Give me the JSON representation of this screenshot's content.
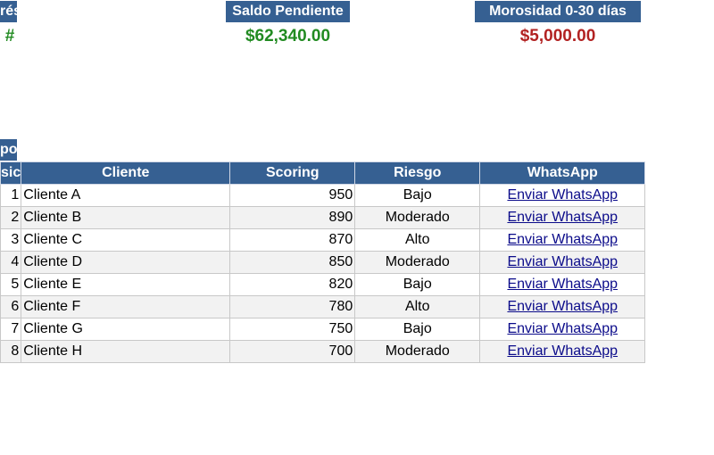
{
  "summary": [
    {
      "label": "rés",
      "value": "#",
      "color": "#228b22"
    },
    {
      "label": "Saldo Pendiente",
      "value": "$62,340.00",
      "color": "#228b22"
    },
    {
      "label": "Morosidad 0-30 días",
      "value": "$5,000.00",
      "color": "#b22222"
    }
  ],
  "table": {
    "group_label": "po",
    "headers": [
      "sic",
      "Cliente",
      "Scoring",
      "Riesgo",
      "WhatsApp"
    ],
    "rows": [
      {
        "pos": "1",
        "cliente": "Cliente A",
        "scoring": "950",
        "riesgo": "Bajo",
        "whatsapp": "Enviar WhatsApp"
      },
      {
        "pos": "2",
        "cliente": "Cliente B",
        "scoring": "890",
        "riesgo": "Moderado",
        "whatsapp": "Enviar WhatsApp"
      },
      {
        "pos": "3",
        "cliente": "Cliente C",
        "scoring": "870",
        "riesgo": "Alto",
        "whatsapp": "Enviar WhatsApp"
      },
      {
        "pos": "4",
        "cliente": "Cliente D",
        "scoring": "850",
        "riesgo": "Moderado",
        "whatsapp": "Enviar WhatsApp"
      },
      {
        "pos": "5",
        "cliente": "Cliente E",
        "scoring": "820",
        "riesgo": "Bajo",
        "whatsapp": "Enviar WhatsApp"
      },
      {
        "pos": "6",
        "cliente": "Cliente F",
        "scoring": "780",
        "riesgo": "Alto",
        "whatsapp": "Enviar WhatsApp"
      },
      {
        "pos": "7",
        "cliente": "Cliente G",
        "scoring": "750",
        "riesgo": "Bajo",
        "whatsapp": "Enviar WhatsApp"
      },
      {
        "pos": "8",
        "cliente": "Cliente H",
        "scoring": "700",
        "riesgo": "Moderado",
        "whatsapp": "Enviar WhatsApp"
      }
    ]
  },
  "colors": {
    "header_bg": "#366092",
    "positive": "#228b22",
    "negative": "#b22222",
    "link": "#0b0b8a"
  }
}
